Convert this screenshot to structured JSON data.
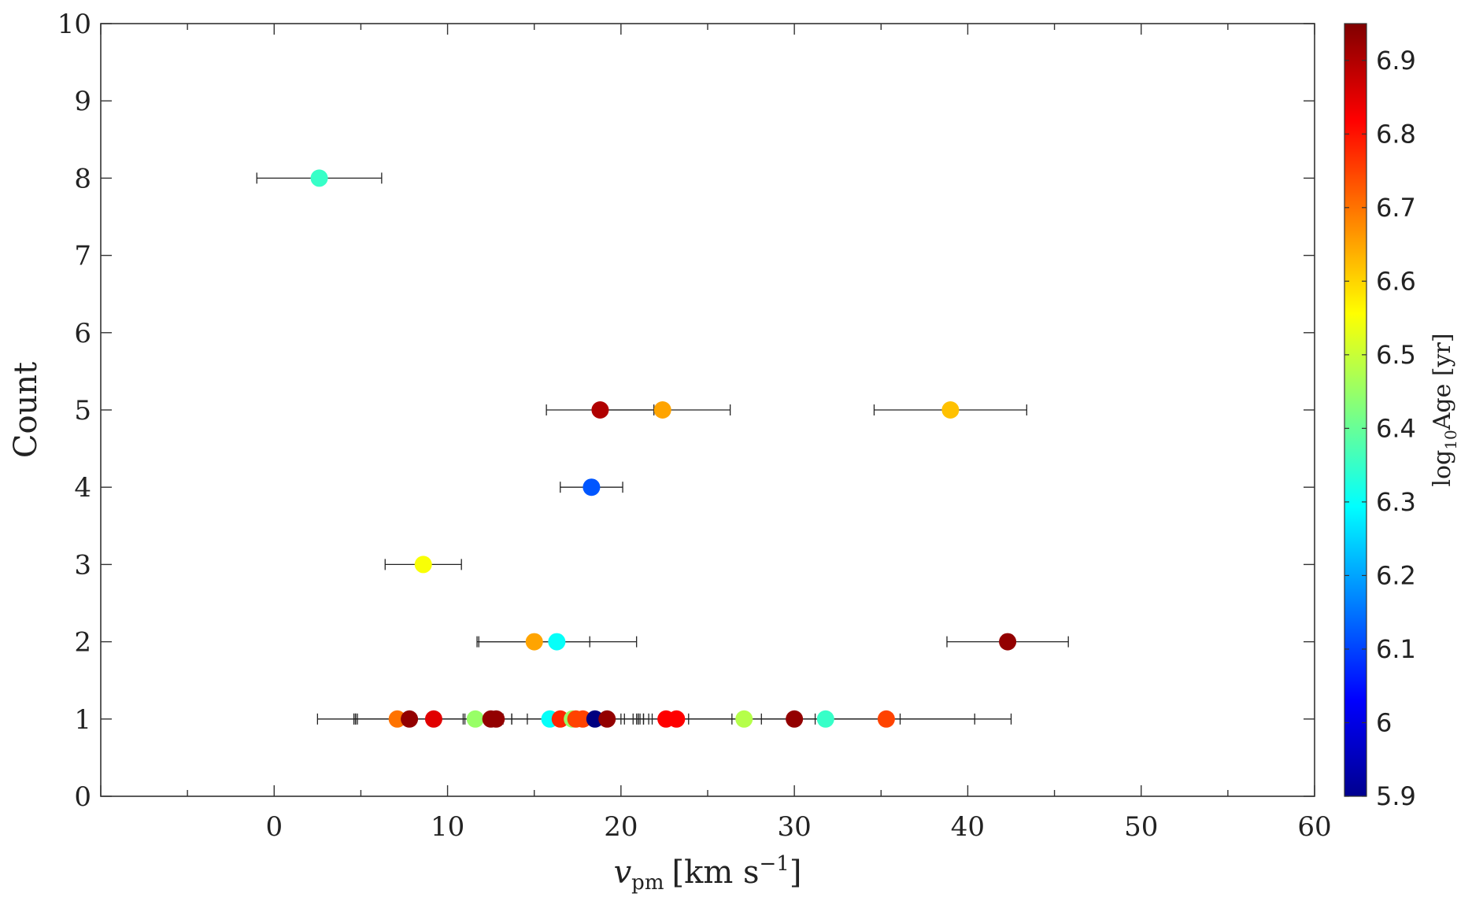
{
  "chart_data": {
    "type": "scatter",
    "xlabel_main": "v",
    "xlabel_sub": "pm",
    "xlabel_unit": "[km s",
    "xlabel_exp": "−1",
    "xlabel_close": "]",
    "ylabel": "Count",
    "xlim": [
      -10,
      60
    ],
    "ylim": [
      0,
      10
    ],
    "x_ticks": [
      0,
      10,
      20,
      30,
      40,
      50,
      60
    ],
    "y_ticks": [
      0,
      1,
      2,
      3,
      4,
      5,
      6,
      7,
      8,
      9,
      10
    ],
    "colorbar": {
      "label_pre": "log",
      "label_sub": "10",
      "label_post": "Age [yr]",
      "range": [
        5.9,
        6.95
      ],
      "ticks": [
        "5.9",
        "6",
        "6.1",
        "6.2",
        "6.3",
        "6.4",
        "6.5",
        "6.6",
        "6.7",
        "6.8",
        "6.9"
      ],
      "colormap": "jet"
    },
    "points": [
      {
        "x": 2.6,
        "y": 8,
        "xerr": 3.6,
        "age": 6.35
      },
      {
        "x": 18.8,
        "y": 5,
        "xerr": 3.1,
        "age": 6.9
      },
      {
        "x": 22.4,
        "y": 5,
        "xerr": 3.9,
        "age": 6.65
      },
      {
        "x": 39.0,
        "y": 5,
        "xerr": 4.4,
        "age": 6.62
      },
      {
        "x": 18.3,
        "y": 4,
        "xerr": 1.8,
        "age": 6.12
      },
      {
        "x": 8.6,
        "y": 3,
        "xerr": 2.2,
        "age": 6.55
      },
      {
        "x": 15.0,
        "y": 2,
        "xerr": 3.2,
        "age": 6.65
      },
      {
        "x": 16.3,
        "y": 2,
        "xerr": 4.6,
        "age": 6.3
      },
      {
        "x": 42.3,
        "y": 2,
        "xerr": 3.5,
        "age": 6.93
      },
      {
        "x": 7.1,
        "y": 1,
        "xerr": 4.6,
        "age": 6.7
      },
      {
        "x": 7.8,
        "y": 1,
        "xerr": 3.2,
        "age": 6.93
      },
      {
        "x": 9.2,
        "y": 1,
        "xerr": 4.5,
        "age": 6.85
      },
      {
        "x": 11.6,
        "y": 1,
        "xerr": 6.9,
        "age": 6.45
      },
      {
        "x": 12.5,
        "y": 1,
        "xerr": 7.7,
        "age": 6.93
      },
      {
        "x": 12.8,
        "y": 1,
        "xerr": 8.2,
        "age": 6.93
      },
      {
        "x": 15.9,
        "y": 1,
        "xerr": 5.0,
        "age": 6.3
      },
      {
        "x": 16.5,
        "y": 1,
        "xerr": 4.8,
        "age": 6.78
      },
      {
        "x": 17.2,
        "y": 1,
        "xerr": 3.5,
        "age": 6.45
      },
      {
        "x": 17.4,
        "y": 1,
        "xerr": 4.2,
        "age": 6.75
      },
      {
        "x": 17.8,
        "y": 1,
        "xerr": 3.2,
        "age": 6.75
      },
      {
        "x": 18.5,
        "y": 1,
        "xerr": 2.8,
        "age": 5.9
      },
      {
        "x": 19.2,
        "y": 1,
        "xerr": 1.9,
        "age": 6.93
      },
      {
        "x": 22.6,
        "y": 1,
        "xerr": 0.8,
        "age": 6.82
      },
      {
        "x": 23.2,
        "y": 1,
        "xerr": 3.2,
        "age": 6.82
      },
      {
        "x": 27.1,
        "y": 1,
        "xerr": 4.1,
        "age": 6.48
      },
      {
        "x": 30.0,
        "y": 1,
        "xerr": 6.1,
        "age": 6.93
      },
      {
        "x": 31.8,
        "y": 1,
        "xerr": 8.6,
        "age": 6.35
      },
      {
        "x": 35.3,
        "y": 1,
        "xerr": 7.2,
        "age": 6.75
      }
    ]
  }
}
